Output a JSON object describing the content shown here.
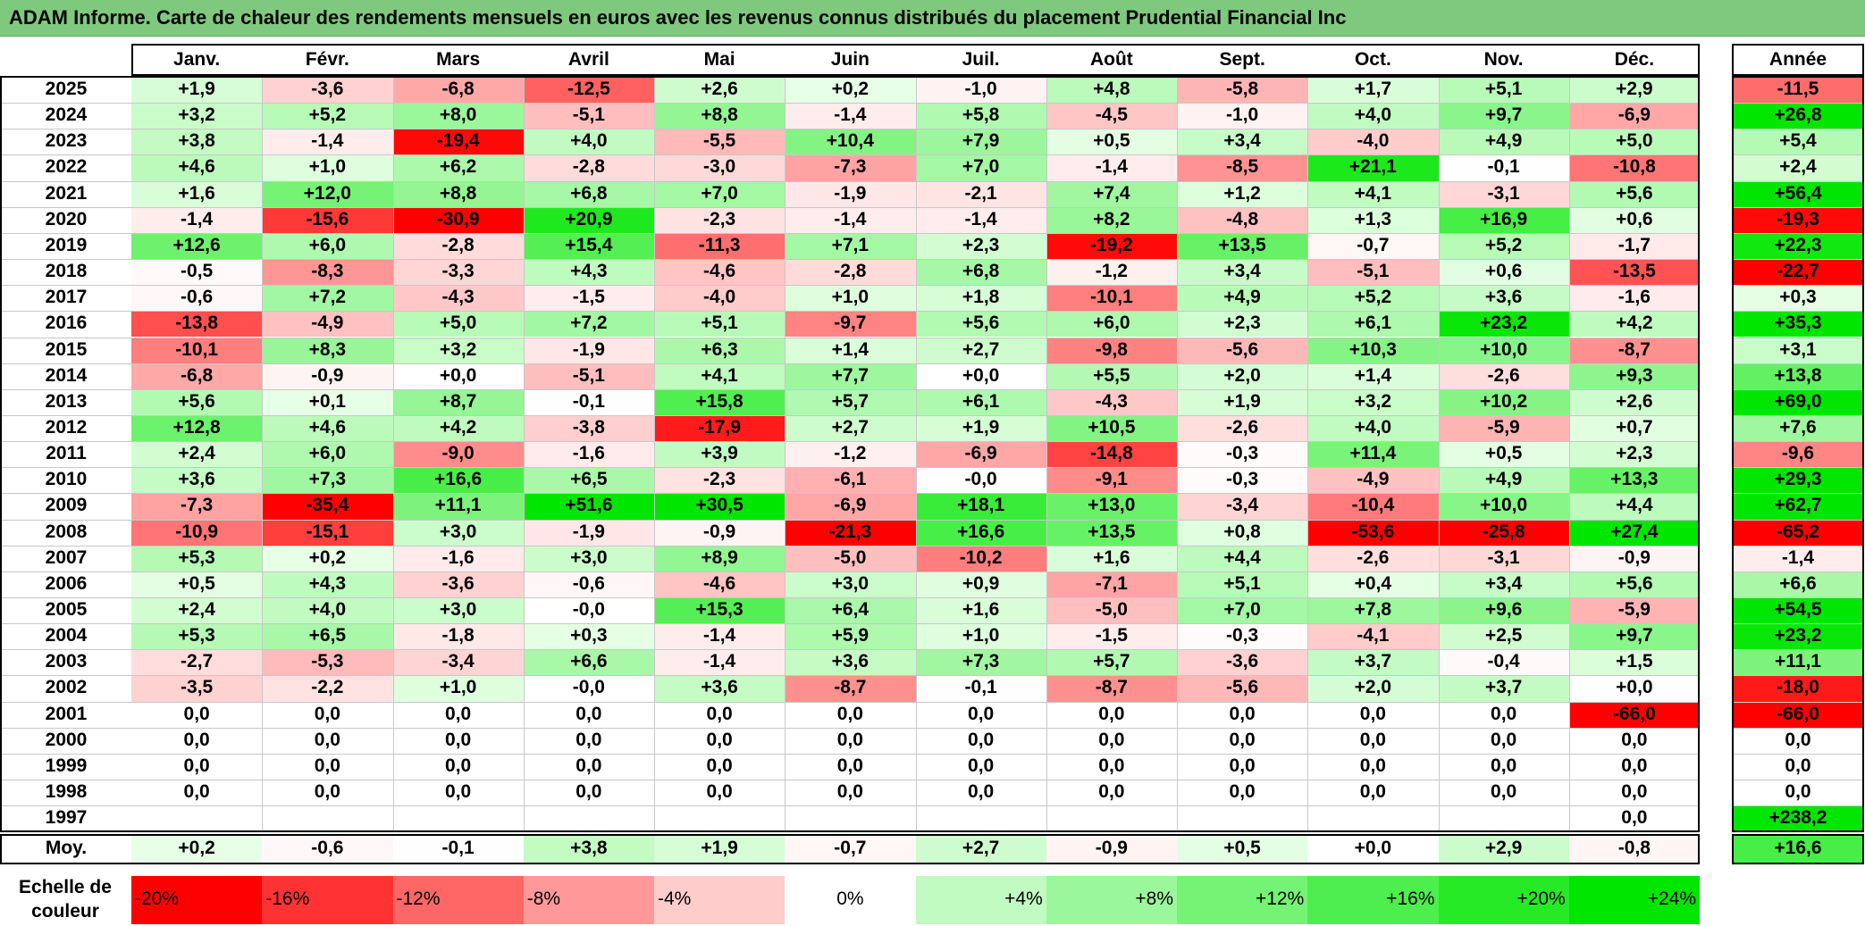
{
  "title": "ADAM Informe. Carte de chaleur des rendements mensuels en euros avec les revenus connus distribués du placement Prudential Financial Inc",
  "chart_data": {
    "type": "heatmap",
    "columns": [
      "Janv.",
      "Févr.",
      "Mars",
      "Avril",
      "Mai",
      "Juin",
      "Juil.",
      "Août",
      "Sept.",
      "Oct.",
      "Nov.",
      "Déc."
    ],
    "year_header": "Année",
    "rows": [
      {
        "year": "2025",
        "values": [
          "+1,9",
          "-3,6",
          "-6,8",
          "-12,5",
          "+2,6",
          "+0,2",
          "-1,0",
          "+4,8",
          "-5,8",
          "+1,7",
          "+5,1",
          "+2,9"
        ],
        "annual": "-11,5"
      },
      {
        "year": "2024",
        "values": [
          "+3,2",
          "+5,2",
          "+8,0",
          "-5,1",
          "+8,8",
          "-1,4",
          "+5,8",
          "-4,5",
          "-1,0",
          "+4,0",
          "+9,7",
          "-6,9"
        ],
        "annual": "+26,8"
      },
      {
        "year": "2023",
        "values": [
          "+3,8",
          "-1,4",
          "-19,4",
          "+4,0",
          "-5,5",
          "+10,4",
          "+7,9",
          "+0,5",
          "+3,4",
          "-4,0",
          "+4,9",
          "+5,0"
        ],
        "annual": "+5,4"
      },
      {
        "year": "2022",
        "values": [
          "+4,6",
          "+1,0",
          "+6,2",
          "-2,8",
          "-3,0",
          "-7,3",
          "+7,0",
          "-1,4",
          "-8,5",
          "+21,1",
          "-0,1",
          "-10,8"
        ],
        "annual": "+2,4"
      },
      {
        "year": "2021",
        "values": [
          "+1,6",
          "+12,0",
          "+8,8",
          "+6,8",
          "+7,0",
          "-1,9",
          "-2,1",
          "+7,4",
          "+1,2",
          "+4,1",
          "-3,1",
          "+5,6"
        ],
        "annual": "+56,4"
      },
      {
        "year": "2020",
        "values": [
          "-1,4",
          "-15,6",
          "-30,9",
          "+20,9",
          "-2,3",
          "-1,4",
          "-1,4",
          "+8,2",
          "-4,8",
          "+1,3",
          "+16,9",
          "+0,6"
        ],
        "annual": "-19,3"
      },
      {
        "year": "2019",
        "values": [
          "+12,6",
          "+6,0",
          "-2,8",
          "+15,4",
          "-11,3",
          "+7,1",
          "+2,3",
          "-19,2",
          "+13,5",
          "-0,7",
          "+5,2",
          "-1,7"
        ],
        "annual": "+22,3"
      },
      {
        "year": "2018",
        "values": [
          "-0,5",
          "-8,3",
          "-3,3",
          "+4,3",
          "-4,6",
          "-2,8",
          "+6,8",
          "-1,2",
          "+3,4",
          "-5,1",
          "+0,6",
          "-13,5"
        ],
        "annual": "-22,7"
      },
      {
        "year": "2017",
        "values": [
          "-0,6",
          "+7,2",
          "-4,3",
          "-1,5",
          "-4,0",
          "+1,0",
          "+1,8",
          "-10,1",
          "+4,9",
          "+5,2",
          "+3,6",
          "-1,6"
        ],
        "annual": "+0,3"
      },
      {
        "year": "2016",
        "values": [
          "-13,8",
          "-4,9",
          "+5,0",
          "+7,2",
          "+5,1",
          "-9,7",
          "+5,6",
          "+6,0",
          "+2,3",
          "+6,1",
          "+23,2",
          "+4,2"
        ],
        "annual": "+35,3"
      },
      {
        "year": "2015",
        "values": [
          "-10,1",
          "+8,3",
          "+3,2",
          "-1,9",
          "+6,3",
          "+1,4",
          "+2,7",
          "-9,8",
          "-5,6",
          "+10,3",
          "+10,0",
          "-8,7"
        ],
        "annual": "+3,1"
      },
      {
        "year": "2014",
        "values": [
          "-6,8",
          "-0,9",
          "+0,0",
          "-5,1",
          "+4,1",
          "+7,7",
          "+0,0",
          "+5,5",
          "+2,0",
          "+1,4",
          "-2,6",
          "+9,3"
        ],
        "annual": "+13,8"
      },
      {
        "year": "2013",
        "values": [
          "+5,6",
          "+0,1",
          "+8,7",
          "-0,1",
          "+15,8",
          "+5,7",
          "+6,1",
          "-4,3",
          "+1,9",
          "+3,2",
          "+10,2",
          "+2,6"
        ],
        "annual": "+69,0"
      },
      {
        "year": "2012",
        "values": [
          "+12,8",
          "+4,6",
          "+4,2",
          "-3,8",
          "-17,9",
          "+2,7",
          "+1,9",
          "+10,5",
          "-2,6",
          "+4,0",
          "-5,9",
          "+0,7"
        ],
        "annual": "+7,6"
      },
      {
        "year": "2011",
        "values": [
          "+2,4",
          "+6,0",
          "-9,0",
          "-1,6",
          "+3,9",
          "-1,2",
          "-6,9",
          "-14,8",
          "-0,3",
          "+11,4",
          "+0,5",
          "+2,3"
        ],
        "annual": "-9,6"
      },
      {
        "year": "2010",
        "values": [
          "+3,6",
          "+7,3",
          "+16,6",
          "+6,5",
          "-2,3",
          "-6,1",
          "-0,0",
          "-9,1",
          "-0,3",
          "-4,9",
          "+4,9",
          "+13,3"
        ],
        "annual": "+29,3"
      },
      {
        "year": "2009",
        "values": [
          "-7,3",
          "-35,4",
          "+11,1",
          "+51,6",
          "+30,5",
          "-6,9",
          "+18,1",
          "+13,0",
          "-3,4",
          "-10,4",
          "+10,0",
          "+4,4"
        ],
        "annual": "+62,7"
      },
      {
        "year": "2008",
        "values": [
          "-10,9",
          "-15,1",
          "+3,0",
          "-1,9",
          "-0,9",
          "-21,3",
          "+16,6",
          "+13,5",
          "+0,8",
          "-53,6",
          "-25,8",
          "+27,4"
        ],
        "annual": "-65,2"
      },
      {
        "year": "2007",
        "values": [
          "+5,3",
          "+0,2",
          "-1,6",
          "+3,0",
          "+8,9",
          "-5,0",
          "-10,2",
          "+1,6",
          "+4,4",
          "-2,6",
          "-3,1",
          "-0,9"
        ],
        "annual": "-1,4"
      },
      {
        "year": "2006",
        "values": [
          "+0,5",
          "+4,3",
          "-3,6",
          "-0,6",
          "-4,6",
          "+3,0",
          "+0,9",
          "-7,1",
          "+5,1",
          "+0,4",
          "+3,4",
          "+5,6"
        ],
        "annual": "+6,6"
      },
      {
        "year": "2005",
        "values": [
          "+2,4",
          "+4,0",
          "+3,0",
          "-0,0",
          "+15,3",
          "+6,4",
          "+1,6",
          "-5,0",
          "+7,0",
          "+7,8",
          "+9,6",
          "-5,9"
        ],
        "annual": "+54,5"
      },
      {
        "year": "2004",
        "values": [
          "+5,3",
          "+6,5",
          "-1,8",
          "+0,3",
          "-1,4",
          "+5,9",
          "+1,0",
          "-1,5",
          "-0,3",
          "-4,1",
          "+2,5",
          "+9,7"
        ],
        "annual": "+23,2"
      },
      {
        "year": "2003",
        "values": [
          "-2,7",
          "-5,3",
          "-3,4",
          "+6,6",
          "-1,4",
          "+3,6",
          "+7,3",
          "+5,7",
          "-3,6",
          "+3,7",
          "-0,4",
          "+1,5"
        ],
        "annual": "+11,1"
      },
      {
        "year": "2002",
        "values": [
          "-3,5",
          "-2,2",
          "+1,0",
          "-0,0",
          "+3,6",
          "-8,7",
          "-0,1",
          "-8,7",
          "-5,6",
          "+2,0",
          "+3,7",
          "+0,0"
        ],
        "annual": "-18,0"
      },
      {
        "year": "2001",
        "values": [
          "0,0",
          "0,0",
          "0,0",
          "0,0",
          "0,0",
          "0,0",
          "0,0",
          "0,0",
          "0,0",
          "0,0",
          "0,0",
          "-66,0"
        ],
        "annual": "-66,0"
      },
      {
        "year": "2000",
        "values": [
          "0,0",
          "0,0",
          "0,0",
          "0,0",
          "0,0",
          "0,0",
          "0,0",
          "0,0",
          "0,0",
          "0,0",
          "0,0",
          "0,0"
        ],
        "annual": "0,0"
      },
      {
        "year": "1999",
        "values": [
          "0,0",
          "0,0",
          "0,0",
          "0,0",
          "0,0",
          "0,0",
          "0,0",
          "0,0",
          "0,0",
          "0,0",
          "0,0",
          "0,0"
        ],
        "annual": "0,0"
      },
      {
        "year": "1998",
        "values": [
          "0,0",
          "0,0",
          "0,0",
          "0,0",
          "0,0",
          "0,0",
          "0,0",
          "0,0",
          "0,0",
          "0,0",
          "0,0",
          "0,0"
        ],
        "annual": "0,0"
      },
      {
        "year": "1997",
        "values": [
          "",
          "",
          "",
          "",
          "",
          "",
          "",
          "",
          "",
          "",
          "",
          "0,0"
        ],
        "annual": "+238,2"
      }
    ],
    "average": {
      "label": "Moy.",
      "values": [
        "+0,2",
        "-0,6",
        "-0,1",
        "+3,8",
        "+1,9",
        "-0,7",
        "+2,7",
        "-0,9",
        "+0,5",
        "+0,0",
        "+2,9",
        "-0,8"
      ],
      "annual": "+16,6"
    },
    "color_scale": {
      "label": "Echelle de couleur",
      "stops": [
        "-20%",
        "-16%",
        "-12%",
        "-8%",
        "-4%",
        "0%",
        "+4%",
        "+8%",
        "+12%",
        "+16%",
        "+20%",
        "+24%"
      ],
      "stop_values": [
        -20,
        -16,
        -12,
        -8,
        -4,
        0,
        4,
        8,
        12,
        16,
        20,
        24
      ],
      "negative_color": "#ff0000",
      "positive_color": "#00e600",
      "neutral_color": "#ffffff"
    }
  },
  "colors": {
    "title_bg": "#7fc97f",
    "grid": "#c8c8c8",
    "border": "#000000"
  }
}
